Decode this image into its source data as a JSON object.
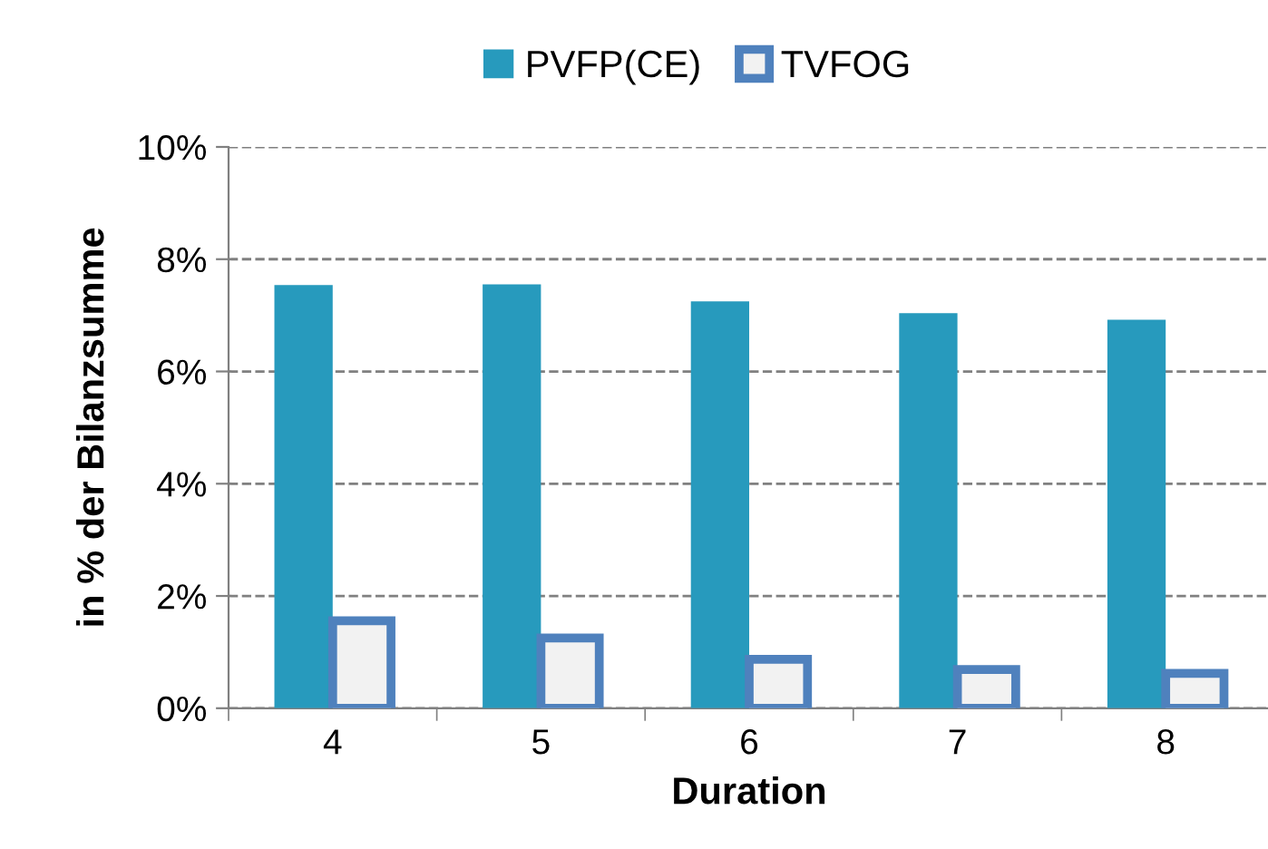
{
  "chart_data": {
    "type": "bar",
    "xlabel": "Duration",
    "ylabel": "in % der Bilanzsumme",
    "categories": [
      "4",
      "5",
      "6",
      "7",
      "8"
    ],
    "series": [
      {
        "name": "PVFP(CE)",
        "color": "#279abd",
        "values": [
          7.54,
          7.55,
          7.25,
          7.04,
          6.92
        ]
      },
      {
        "name": "TVFOG",
        "color": "#4f81bd",
        "values": [
          1.56,
          1.25,
          0.87,
          0.69,
          0.62
        ]
      }
    ],
    "ylim": [
      0,
      10
    ],
    "yticks": [
      {
        "value": 0,
        "label": "0%"
      },
      {
        "value": 2,
        "label": "2%"
      },
      {
        "value": 4,
        "label": "4%"
      },
      {
        "value": 6,
        "label": "6%"
      },
      {
        "value": 8,
        "label": "8%"
      },
      {
        "value": 10,
        "label": "10%"
      }
    ],
    "grid": "y",
    "legend": "top"
  }
}
